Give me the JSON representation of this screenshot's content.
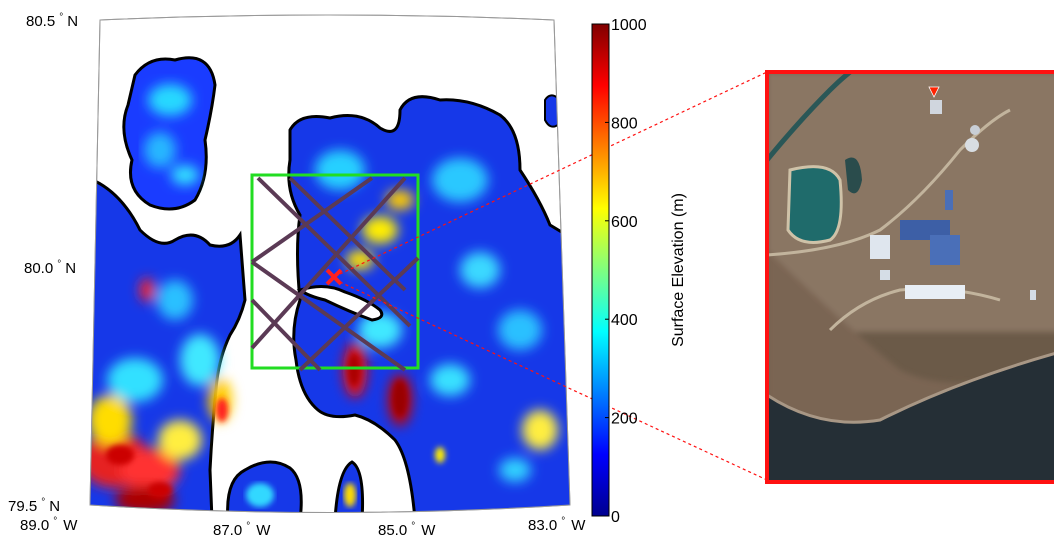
{
  "map": {
    "lat_labels": [
      {
        "deg": "80.5",
        "hemi": "N"
      },
      {
        "deg": "80.0",
        "hemi": "N"
      },
      {
        "deg": "79.5",
        "hemi": "N"
      }
    ],
    "lon_labels": [
      {
        "deg": "89.0",
        "hemi": "W"
      },
      {
        "deg": "87.0",
        "hemi": "W"
      },
      {
        "deg": "85.0",
        "hemi": "W"
      },
      {
        "deg": "83.0",
        "hemi": "W"
      }
    ],
    "station_marker": "x-marker",
    "study_box_color": "#22dd22",
    "flight_line_color": "#5b3a55"
  },
  "colorbar": {
    "title": "Surface Elevation (m)",
    "ticks": [
      "1000",
      "800",
      "600",
      "400",
      "200",
      "0"
    ],
    "range": [
      0,
      1000
    ],
    "colormap": "jet"
  },
  "inset": {
    "border_color": "#ff1111",
    "connector_color": "#ff1111",
    "arrow_color": "#ff2200"
  }
}
